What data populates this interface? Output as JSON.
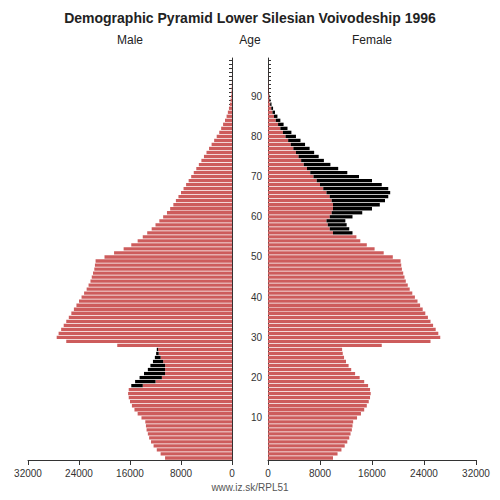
{
  "chart_data": [
    {
      "type": "bar",
      "orientation": "horizontal",
      "stacked": true,
      "grid": false,
      "tick_labels": "x",
      "title": "Demographic Pyramid Lower Silesian Voivodeship 1996",
      "subtitle": "Male",
      "annotations": [
        "www.iz.sk/RPL51"
      ],
      "categories": [
        null,
        null,
        null,
        null,
        null,
        null,
        null,
        null,
        null,
        null,
        "10",
        null,
        null,
        null,
        null,
        null,
        null,
        null,
        null,
        null,
        "20",
        null,
        null,
        null,
        null,
        null,
        null,
        null,
        null,
        null,
        "30",
        null,
        null,
        null,
        null,
        null,
        null,
        null,
        null,
        null,
        "40",
        null,
        null,
        null,
        null,
        null,
        null,
        null,
        null,
        null,
        "50",
        null,
        null,
        null,
        null,
        null,
        null,
        null,
        null,
        null,
        "60",
        null,
        null,
        null,
        null,
        null,
        null,
        null,
        null,
        null,
        "70",
        null,
        null,
        null,
        null,
        null,
        null,
        null,
        null,
        null,
        "80",
        null,
        null,
        null,
        null,
        null,
        null,
        null,
        null,
        null,
        "90",
        null,
        null,
        null,
        null,
        null,
        null,
        null,
        null,
        null
      ],
      "xlim": [
        32000,
        0
      ],
      "xticks": [
        32000,
        24000,
        16000,
        8000,
        0
      ],
      "series": [
        {
          "color": "#CD5C5C",
          "values": [
            10500,
            11200,
            11800,
            12300,
            12700,
            13000,
            13200,
            13400,
            13500,
            13600,
            14200,
            14800,
            15300,
            15700,
            16000,
            16200,
            16300,
            16200,
            14000,
            12000,
            11000,
            10500,
            10500,
            10500,
            10800,
            11200,
            11500,
            11600,
            18000,
            26000,
            27500,
            27200,
            26800,
            26400,
            26000,
            25600,
            25200,
            24800,
            24400,
            24000,
            23600,
            23200,
            22800,
            22500,
            22200,
            22000,
            21800,
            21600,
            21500,
            21400,
            20000,
            18500,
            17000,
            15800,
            14800,
            14000,
            13300,
            12600,
            12000,
            11400,
            10800,
            10200,
            9700,
            9200,
            8800,
            8400,
            8000,
            7600,
            7200,
            6800,
            6400,
            6000,
            5600,
            5200,
            4800,
            4400,
            4000,
            3600,
            3200,
            2800,
            2400,
            2000,
            1700,
            1400,
            1100,
            850,
            650,
            480,
            340,
            230,
            150,
            95,
            58,
            34,
            19,
            10,
            6,
            3,
            1,
            1
          ]
        },
        {
          "color": "#000000",
          "values": [
            0,
            0,
            0,
            0,
            0,
            0,
            0,
            0,
            0,
            0,
            0,
            0,
            0,
            0,
            0,
            0,
            0,
            0,
            1800,
            3200,
            3500,
            3300,
            2700,
            2300,
            1600,
            900,
            400,
            200,
            0,
            0,
            0,
            0,
            0,
            0,
            0,
            0,
            0,
            0,
            0,
            0,
            0,
            0,
            0,
            0,
            0,
            0,
            0,
            0,
            0,
            0,
            0,
            0,
            0,
            0,
            0,
            0,
            0,
            0,
            0,
            0,
            0,
            0,
            0,
            0,
            0,
            0,
            0,
            0,
            0,
            0,
            0,
            0,
            0,
            0,
            0,
            0,
            0,
            0,
            0,
            0,
            0,
            0,
            0,
            0,
            0,
            0,
            0,
            0,
            0,
            0,
            0,
            0,
            0,
            0,
            0,
            0,
            0,
            0,
            0,
            0
          ]
        }
      ]
    },
    {
      "type": "bar",
      "orientation": "horizontal",
      "stacked": true,
      "grid": false,
      "subtitle": "Female",
      "ylabel": "Age",
      "categories": [
        null,
        null,
        null,
        null,
        null,
        null,
        null,
        null,
        null,
        null,
        "10",
        null,
        null,
        null,
        null,
        null,
        null,
        null,
        null,
        null,
        "20",
        null,
        null,
        null,
        null,
        null,
        null,
        null,
        null,
        null,
        "30",
        null,
        null,
        null,
        null,
        null,
        null,
        null,
        null,
        null,
        "40",
        null,
        null,
        null,
        null,
        null,
        null,
        null,
        null,
        null,
        "50",
        null,
        null,
        null,
        null,
        null,
        null,
        null,
        null,
        null,
        "60",
        null,
        null,
        null,
        null,
        null,
        null,
        null,
        null,
        null,
        "70",
        null,
        null,
        null,
        null,
        null,
        null,
        null,
        null,
        null,
        "80",
        null,
        null,
        null,
        null,
        null,
        null,
        null,
        null,
        null,
        "90",
        null,
        null,
        null,
        null,
        null,
        null,
        null,
        null,
        null
      ],
      "xlim": [
        0,
        32000
      ],
      "xticks": [
        0,
        8000,
        16000,
        24000,
        32000
      ],
      "series": [
        {
          "color": "#CD5C5C",
          "values": [
            10000,
            10700,
            11300,
            11800,
            12200,
            12500,
            12700,
            12900,
            13000,
            13100,
            13700,
            14300,
            14800,
            15200,
            15500,
            15700,
            15800,
            15700,
            15400,
            14800,
            14100,
            13400,
            12800,
            12400,
            12000,
            11700,
            11500,
            11400,
            17500,
            25000,
            26500,
            26200,
            25800,
            25400,
            25000,
            24600,
            24200,
            23800,
            23400,
            23000,
            22600,
            22200,
            21800,
            21500,
            21200,
            21000,
            20800,
            20600,
            20500,
            20400,
            19200,
            17800,
            16400,
            15200,
            14200,
            13600,
            10000,
            9500,
            9200,
            9000,
            9500,
            9800,
            10000,
            10000,
            9800,
            9500,
            9000,
            8500,
            8000,
            7500,
            7000,
            6500,
            6000,
            5500,
            5100,
            4700,
            4300,
            3900,
            3500,
            3100,
            2700,
            2300,
            1900,
            1550,
            1200,
            920,
            690,
            500,
            350,
            230,
            145,
            88,
            51,
            29,
            16,
            8,
            4,
            2,
            1,
            0
          ]
        },
        {
          "color": "#000000",
          "values": [
            0,
            0,
            0,
            0,
            0,
            0,
            0,
            0,
            0,
            0,
            0,
            0,
            0,
            0,
            0,
            0,
            0,
            0,
            0,
            0,
            0,
            0,
            0,
            0,
            0,
            0,
            0,
            0,
            0,
            0,
            0,
            0,
            0,
            0,
            0,
            0,
            0,
            0,
            0,
            0,
            0,
            0,
            0,
            0,
            0,
            0,
            0,
            0,
            0,
            0,
            0,
            0,
            0,
            0,
            0,
            0,
            3000,
            3000,
            2900,
            2900,
            3500,
            4700,
            6000,
            7200,
            8200,
            9000,
            9800,
            10000,
            9500,
            8500,
            7000,
            5700,
            4800,
            4100,
            3500,
            3100,
            2800,
            2500,
            2200,
            1900,
            1600,
            1300,
            1100,
            850,
            700,
            530,
            390,
            280,
            190,
            130,
            85,
            52,
            31,
            17,
            9,
            5,
            3,
            1,
            1,
            1
          ]
        }
      ]
    }
  ]
}
